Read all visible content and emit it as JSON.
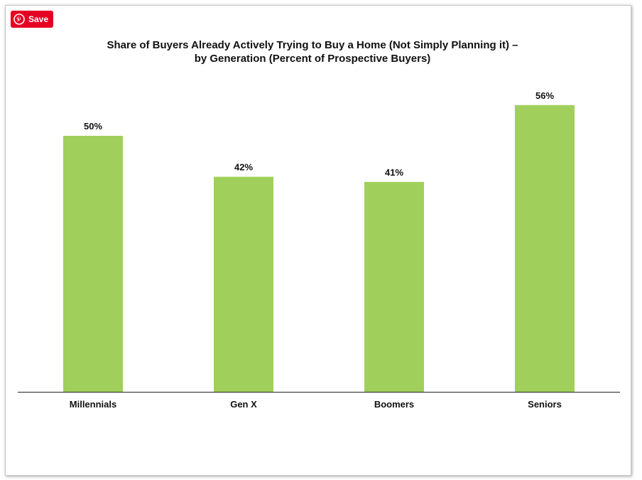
{
  "save_button": {
    "label": "Save",
    "icon": "pinterest-icon",
    "color": "#e60023"
  },
  "chart_data": {
    "type": "bar",
    "title": "Share of Buyers Already Actively Trying to Buy a Home (Not Simply Planning it) – by Generation   (Percent of Prospective Buyers)",
    "title_lines": [
      "Share of Buyers Already Actively Trying to Buy a Home (Not Simply Planning it) –",
      "by Generation   (Percent of Prospective Buyers)"
    ],
    "categories": [
      "Millennials",
      "Gen X",
      "Boomers",
      "Seniors"
    ],
    "values": [
      50,
      42,
      41,
      56
    ],
    "value_labels": [
      "50%",
      "42%",
      "41%",
      "56%"
    ],
    "bar_color": "#a1cf5b",
    "ylim": [
      0,
      100
    ],
    "xlabel": "",
    "ylabel": "",
    "grid": false,
    "legend": "none"
  }
}
